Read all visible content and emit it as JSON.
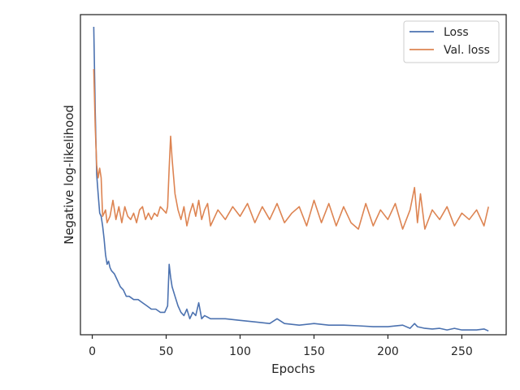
{
  "chart_data": {
    "type": "line",
    "title": "",
    "xlabel": "Epochs",
    "ylabel": "Negative log-likelihood",
    "xlim": [
      -8,
      280
    ],
    "ylim": [
      0,
      1
    ],
    "xticks": [
      0,
      50,
      100,
      150,
      200,
      250
    ],
    "yticks_labeled": false,
    "grid": false,
    "legend": "top-right",
    "series": [
      {
        "name": "Loss",
        "color": "#4c72b0",
        "x": [
          1,
          2,
          3,
          4,
          5,
          6,
          7,
          8,
          9,
          10,
          11,
          12,
          13,
          15,
          17,
          19,
          21,
          23,
          25,
          28,
          31,
          34,
          37,
          40,
          43,
          46,
          49,
          51,
          52,
          53,
          54,
          56,
          58,
          60,
          62,
          64,
          66,
          68,
          70,
          72,
          74,
          76,
          80,
          90,
          100,
          110,
          120,
          125,
          130,
          140,
          150,
          160,
          170,
          180,
          190,
          200,
          210,
          215,
          218,
          220,
          225,
          230,
          235,
          240,
          245,
          250,
          255,
          260,
          265,
          268
        ],
        "y": [
          0.962,
          0.7,
          0.5,
          0.44,
          0.38,
          0.37,
          0.34,
          0.3,
          0.25,
          0.22,
          0.23,
          0.21,
          0.2,
          0.19,
          0.17,
          0.15,
          0.14,
          0.12,
          0.12,
          0.11,
          0.11,
          0.1,
          0.09,
          0.08,
          0.08,
          0.07,
          0.07,
          0.09,
          0.22,
          0.18,
          0.15,
          0.12,
          0.09,
          0.07,
          0.06,
          0.08,
          0.05,
          0.07,
          0.06,
          0.1,
          0.05,
          0.06,
          0.05,
          0.05,
          0.045,
          0.04,
          0.035,
          0.05,
          0.035,
          0.03,
          0.035,
          0.03,
          0.03,
          0.028,
          0.025,
          0.025,
          0.03,
          0.02,
          0.035,
          0.025,
          0.02,
          0.018,
          0.02,
          0.015,
          0.02,
          0.015,
          0.015,
          0.015,
          0.018,
          0.012
        ]
      },
      {
        "name": "Val. loss",
        "color": "#dd8452",
        "x": [
          1,
          2,
          3,
          4,
          5,
          6,
          7,
          8,
          9,
          10,
          12,
          14,
          16,
          18,
          20,
          22,
          24,
          26,
          28,
          30,
          32,
          34,
          36,
          38,
          40,
          42,
          44,
          46,
          48,
          50,
          51,
          52,
          53,
          54,
          56,
          58,
          60,
          62,
          64,
          66,
          68,
          70,
          72,
          74,
          76,
          78,
          80,
          85,
          90,
          95,
          100,
          105,
          110,
          115,
          120,
          125,
          130,
          135,
          140,
          145,
          150,
          155,
          160,
          165,
          170,
          175,
          180,
          185,
          190,
          195,
          200,
          205,
          210,
          215,
          218,
          220,
          222,
          225,
          230,
          235,
          240,
          245,
          250,
          255,
          260,
          265,
          268
        ],
        "y": [
          0.83,
          0.65,
          0.53,
          0.49,
          0.52,
          0.49,
          0.37,
          0.38,
          0.39,
          0.35,
          0.37,
          0.42,
          0.36,
          0.4,
          0.35,
          0.4,
          0.37,
          0.36,
          0.38,
          0.35,
          0.39,
          0.4,
          0.36,
          0.38,
          0.36,
          0.38,
          0.37,
          0.4,
          0.39,
          0.38,
          0.4,
          0.52,
          0.62,
          0.55,
          0.44,
          0.39,
          0.36,
          0.4,
          0.34,
          0.38,
          0.41,
          0.37,
          0.42,
          0.36,
          0.39,
          0.41,
          0.34,
          0.39,
          0.36,
          0.4,
          0.37,
          0.41,
          0.35,
          0.4,
          0.36,
          0.41,
          0.35,
          0.38,
          0.4,
          0.34,
          0.42,
          0.35,
          0.41,
          0.34,
          0.4,
          0.35,
          0.33,
          0.41,
          0.34,
          0.39,
          0.36,
          0.41,
          0.33,
          0.39,
          0.46,
          0.35,
          0.44,
          0.33,
          0.39,
          0.36,
          0.4,
          0.34,
          0.38,
          0.36,
          0.39,
          0.34,
          0.4
        ]
      }
    ]
  }
}
